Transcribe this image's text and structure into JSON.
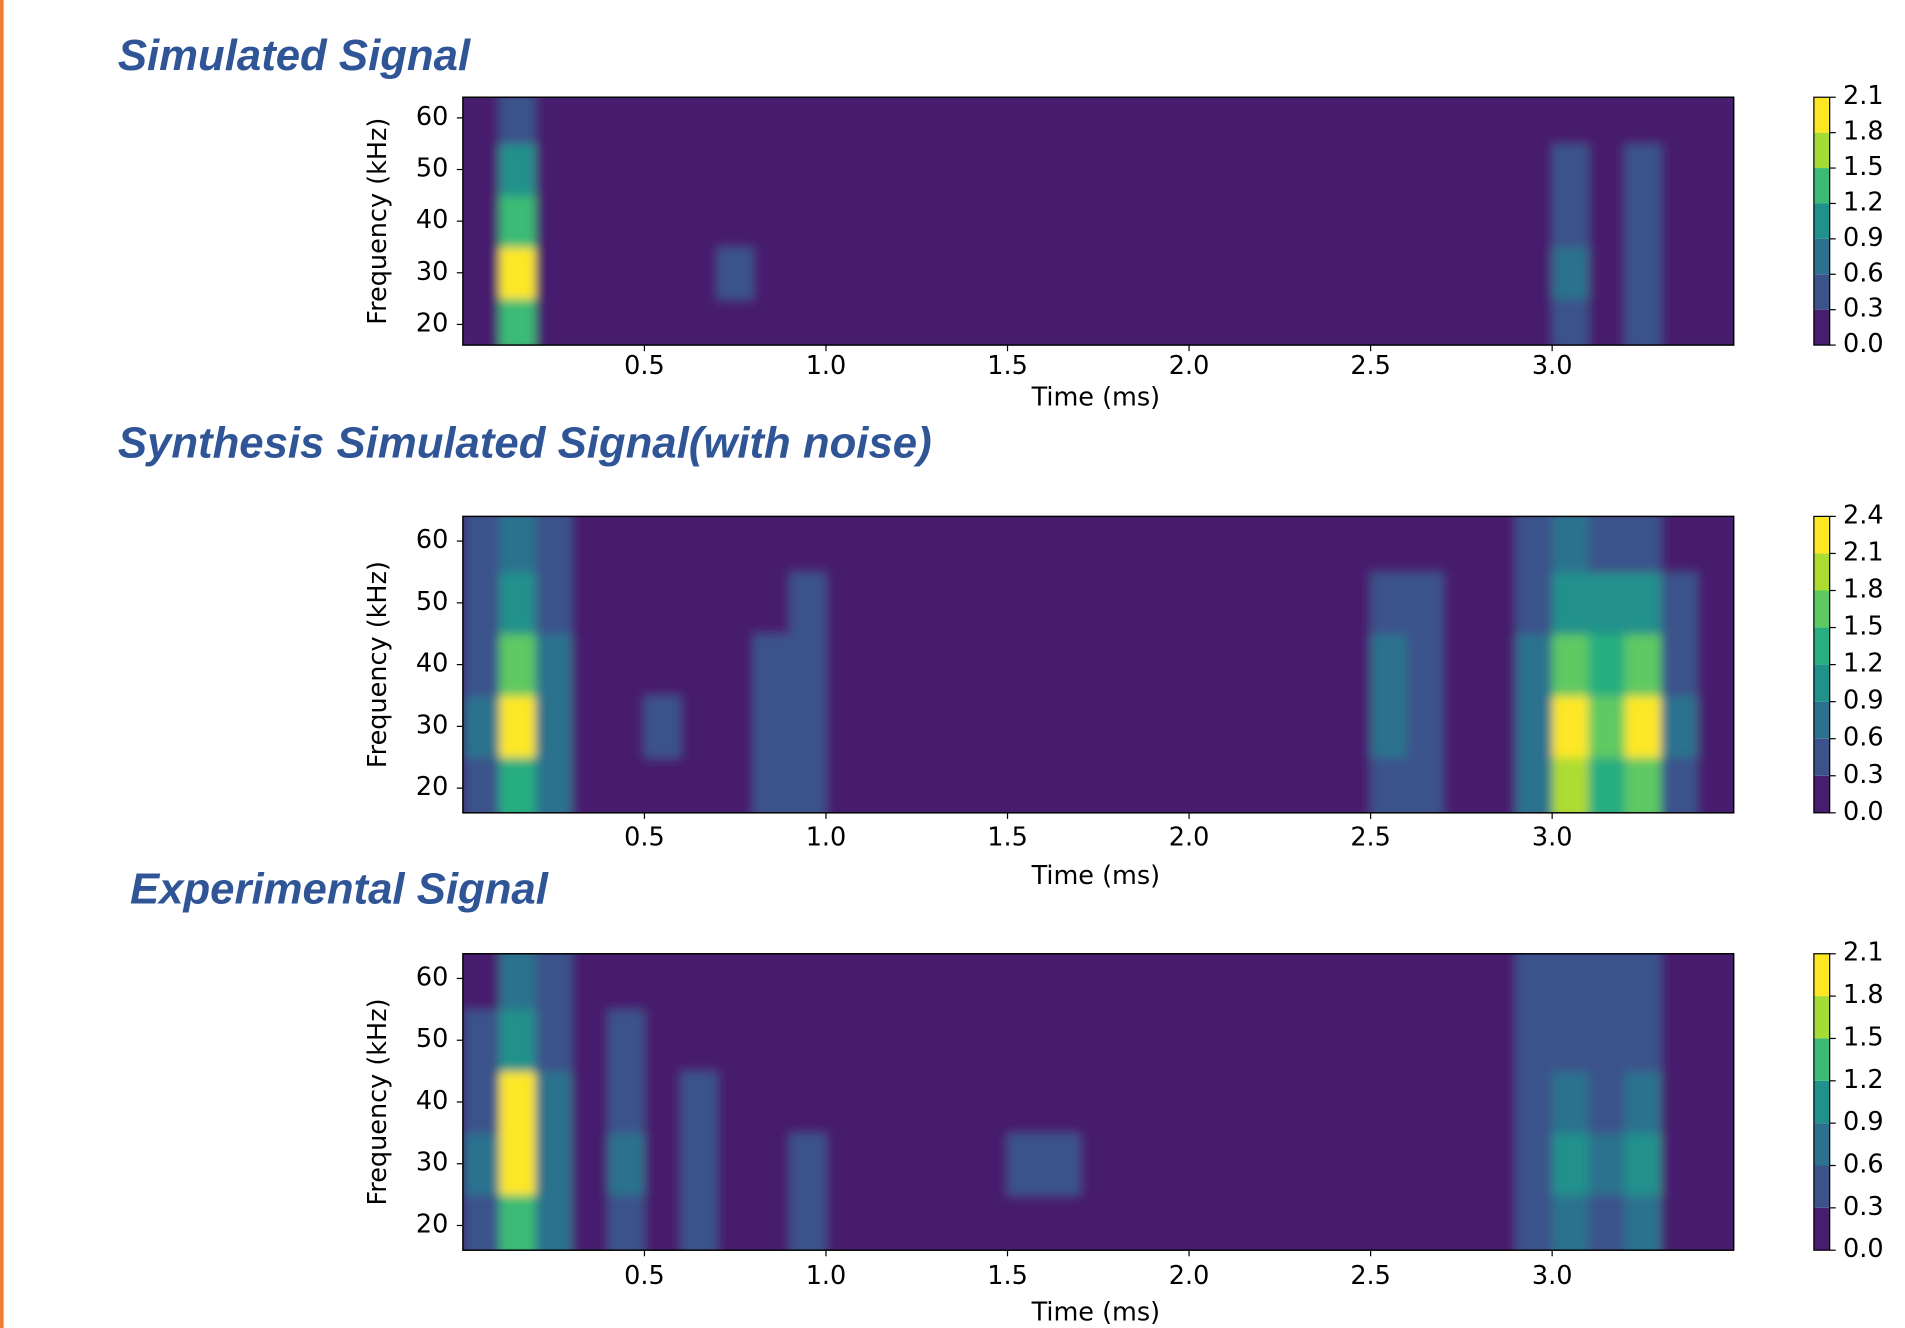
{
  "chart_data": [
    {
      "type": "heatmap",
      "title": "Simulated Signal",
      "xlabel": "Time (ms)",
      "ylabel": "Frequency (kHz)",
      "x": [
        0.05,
        0.15,
        0.25,
        0.35,
        0.45,
        0.55,
        0.65,
        0.75,
        0.85,
        0.95,
        1.05,
        1.15,
        1.25,
        1.35,
        1.45,
        1.55,
        1.65,
        1.75,
        1.85,
        1.95,
        2.05,
        2.15,
        2.25,
        2.35,
        2.45,
        2.55,
        2.65,
        2.75,
        2.85,
        2.95,
        3.05,
        3.15,
        3.25,
        3.35,
        3.45
      ],
      "y": [
        20,
        30,
        40,
        50,
        60
      ],
      "z": [
        [
          0,
          1.2,
          0.2,
          0,
          0,
          0,
          0,
          0,
          0,
          0,
          0,
          0,
          0,
          0,
          0,
          0,
          0,
          0,
          0,
          0,
          0,
          0,
          0,
          0,
          0,
          0,
          0,
          0,
          0,
          0,
          0.5,
          0,
          0.4,
          0,
          0
        ],
        [
          0,
          2,
          0.2,
          0,
          0,
          0,
          0,
          0.35,
          0,
          0,
          0,
          0,
          0,
          0,
          0,
          0,
          0,
          0,
          0,
          0,
          0,
          0,
          0,
          0,
          0,
          0,
          0,
          0,
          0,
          0,
          0.7,
          0,
          0.5,
          0,
          0
        ],
        [
          0,
          1.4,
          0.2,
          0,
          0,
          0,
          0,
          0,
          0,
          0,
          0,
          0,
          0,
          0,
          0,
          0,
          0,
          0,
          0,
          0,
          0,
          0,
          0,
          0,
          0,
          0,
          0,
          0,
          0,
          0,
          0.5,
          0,
          0.5,
          0,
          0
        ],
        [
          0,
          0.9,
          0.1,
          0,
          0,
          0,
          0,
          0,
          0,
          0,
          0,
          0,
          0,
          0,
          0,
          0,
          0,
          0,
          0,
          0,
          0,
          0,
          0,
          0,
          0,
          0,
          0,
          0,
          0,
          0,
          0.4,
          0,
          0.4,
          0,
          0
        ],
        [
          0,
          0.5,
          0.1,
          0,
          0,
          0,
          0,
          0,
          0,
          0,
          0,
          0,
          0,
          0,
          0,
          0,
          0,
          0,
          0,
          0,
          0,
          0,
          0,
          0,
          0,
          0,
          0,
          0,
          0,
          0,
          0,
          0,
          0,
          0,
          0
        ]
      ],
      "xlim": [
        0,
        3.5
      ],
      "ylim": [
        16,
        64
      ],
      "xticks": [
        0.5,
        {
          "value": 1,
          "label": "1.0"
        },
        1.5,
        {
          "value": 2,
          "label": "2.0"
        },
        2.5,
        {
          "value": 3,
          "label": "3.0"
        }
      ],
      "yticks": [
        20,
        30,
        40,
        50,
        60
      ],
      "levels": [
        {
          "value": 0,
          "label": "0.0"
        },
        0.3,
        0.6,
        0.9,
        1.2,
        1.5,
        1.8,
        2.1
      ],
      "colors": [
        "#471d6e",
        "#3b528b",
        "#2c728e",
        "#21918c",
        "#3bbb75",
        "#a5db36",
        "#fde725"
      ]
    },
    {
      "type": "heatmap",
      "title": "Synthesis Simulated Signal(with noise)",
      "xlabel": "Time (ms)",
      "ylabel": "Frequency (kHz)",
      "x": [
        0.05,
        0.15,
        0.25,
        0.35,
        0.45,
        0.55,
        0.65,
        0.75,
        0.85,
        0.95,
        1.05,
        1.15,
        1.25,
        1.35,
        1.45,
        1.55,
        1.65,
        1.75,
        1.85,
        1.95,
        2.05,
        2.15,
        2.25,
        2.35,
        2.45,
        2.55,
        2.65,
        2.75,
        2.85,
        2.95,
        3.05,
        3.15,
        3.25,
        3.35,
        3.45
      ],
      "y": [
        20,
        30,
        40,
        50,
        60
      ],
      "z": [
        [
          0.5,
          1.2,
          0.6,
          0,
          0,
          0,
          0,
          0,
          0.4,
          0.4,
          0,
          0,
          0,
          0,
          0,
          0,
          0,
          0,
          0,
          0,
          0,
          0,
          0,
          0,
          0,
          0.5,
          0.4,
          0,
          0,
          0.6,
          1.9,
          1.3,
          1.6,
          0.5,
          0
        ],
        [
          0.7,
          2.1,
          0.7,
          0,
          0,
          0.4,
          0,
          0,
          0.4,
          0.4,
          0,
          0,
          0,
          0,
          0,
          0,
          0,
          0,
          0,
          0,
          0,
          0,
          0,
          0,
          0,
          0.8,
          0.5,
          0,
          0,
          0.8,
          2.3,
          1.6,
          2.1,
          0.7,
          0
        ],
        [
          0.5,
          1.6,
          0.6,
          0,
          0,
          0,
          0,
          0,
          0.4,
          0.4,
          0,
          0,
          0,
          0,
          0,
          0,
          0,
          0,
          0,
          0,
          0,
          0,
          0,
          0,
          0,
          0.6,
          0.4,
          0,
          0,
          0.6,
          1.7,
          1.4,
          1.5,
          0.5,
          0
        ],
        [
          0.3,
          1.1,
          0.4,
          0,
          0,
          0,
          0,
          0,
          0,
          0.3,
          0,
          0,
          0,
          0,
          0,
          0,
          0,
          0,
          0,
          0,
          0,
          0,
          0,
          0,
          0,
          0.4,
          0.3,
          0,
          0,
          0.4,
          1.1,
          1,
          1,
          0.3,
          0
        ],
        [
          0.3,
          0.6,
          0.3,
          0,
          0,
          0,
          0,
          0,
          0,
          0,
          0,
          0,
          0,
          0,
          0,
          0,
          0,
          0,
          0,
          0,
          0,
          0,
          0,
          0,
          0,
          0.1,
          0,
          0,
          0,
          0.3,
          0.6,
          0.5,
          0.5,
          0.1,
          0
        ]
      ],
      "xlim": [
        0,
        3.5
      ],
      "ylim": [
        16,
        64
      ],
      "xticks": [
        0.5,
        {
          "value": 1,
          "label": "1.0"
        },
        1.5,
        {
          "value": 2,
          "label": "2.0"
        },
        2.5,
        {
          "value": 3,
          "label": "3.0"
        }
      ],
      "yticks": [
        20,
        30,
        40,
        50,
        60
      ],
      "levels": [
        {
          "value": 0,
          "label": "0.0"
        },
        0.3,
        0.6,
        0.9,
        1.2,
        1.5,
        1.8,
        2.1,
        2.4
      ],
      "colors": [
        "#471d6e",
        "#3b528b",
        "#2c728e",
        "#21918c",
        "#28ae80",
        "#5ec962",
        "#addc30",
        "#fde725"
      ]
    },
    {
      "type": "heatmap",
      "title": "Experimental Signal",
      "xlabel": "Time (ms)",
      "ylabel": "Frequency (kHz)",
      "x": [
        0.05,
        0.15,
        0.25,
        0.35,
        0.45,
        0.55,
        0.65,
        0.75,
        0.85,
        0.95,
        1.05,
        1.15,
        1.25,
        1.35,
        1.45,
        1.55,
        1.65,
        1.75,
        1.85,
        1.95,
        2.05,
        2.15,
        2.25,
        2.35,
        2.45,
        2.55,
        2.65,
        2.75,
        2.85,
        2.95,
        3.05,
        3.15,
        3.25,
        3.35,
        3.45
      ],
      "y": [
        20,
        30,
        40,
        50,
        60
      ],
      "z": [
        [
          0.4,
          1.2,
          0.6,
          0,
          0.3,
          0,
          0.3,
          0,
          0,
          0.3,
          0,
          0,
          0,
          0,
          0,
          0,
          0,
          0,
          0,
          0,
          0,
          0,
          0,
          0,
          0,
          0,
          0,
          0,
          0,
          0.3,
          0.6,
          0.4,
          0.6,
          0,
          0
        ],
        [
          0.7,
          2,
          0.8,
          0,
          0.7,
          0,
          0.4,
          0,
          0,
          0.4,
          0,
          0,
          0,
          0,
          0,
          0.4,
          0.4,
          0,
          0,
          0,
          0,
          0,
          0,
          0,
          0,
          0,
          0,
          0,
          0,
          0.5,
          1,
          0.6,
          1.1,
          0,
          0
        ],
        [
          0.5,
          1.8,
          0.7,
          0,
          0.4,
          0,
          0.3,
          0,
          0,
          0,
          0,
          0,
          0,
          0,
          0,
          0,
          0,
          0,
          0,
          0,
          0,
          0,
          0,
          0,
          0,
          0,
          0,
          0,
          0,
          0.4,
          0.8,
          0.5,
          0.8,
          0,
          0
        ],
        [
          0.3,
          1.1,
          0.5,
          0,
          0.3,
          0,
          0,
          0,
          0,
          0,
          0,
          0,
          0,
          0,
          0,
          0,
          0,
          0,
          0,
          0,
          0,
          0,
          0,
          0,
          0,
          0,
          0,
          0,
          0,
          0.3,
          0.5,
          0.4,
          0.5,
          0,
          0
        ],
        [
          0.2,
          0.6,
          0.3,
          0,
          0,
          0,
          0,
          0,
          0,
          0,
          0,
          0,
          0,
          0,
          0,
          0,
          0,
          0,
          0,
          0,
          0,
          0,
          0,
          0,
          0,
          0,
          0,
          0,
          0,
          0.3,
          0.4,
          0.3,
          0.3,
          0,
          0
        ]
      ],
      "xlim": [
        0,
        3.5
      ],
      "ylim": [
        16,
        64
      ],
      "xticks": [
        0.5,
        {
          "value": 1,
          "label": "1.0"
        },
        1.5,
        {
          "value": 2,
          "label": "2.0"
        },
        2.5,
        {
          "value": 3,
          "label": "3.0"
        }
      ],
      "yticks": [
        20,
        30,
        40,
        50,
        60
      ],
      "levels": [
        {
          "value": 0,
          "label": "0.0"
        },
        0.3,
        0.6,
        0.9,
        1.2,
        1.5,
        1.8,
        2.1
      ],
      "colors": [
        "#471d6e",
        "#3b528b",
        "#2c728e",
        "#21918c",
        "#3bbb75",
        "#a5db36",
        "#fde725"
      ]
    }
  ]
}
